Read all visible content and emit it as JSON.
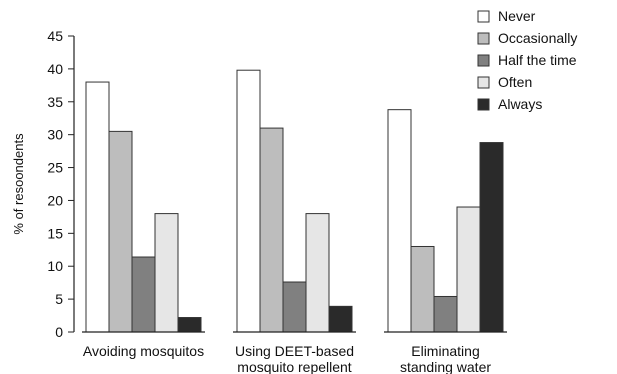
{
  "chart_data": {
    "type": "bar",
    "categories": [
      [
        "Avoiding mosquitos"
      ],
      [
        "Using DEET-based",
        "mosquito repellent"
      ],
      [
        "Eliminating",
        "standing water"
      ]
    ],
    "series": [
      {
        "name": "Never",
        "color": "#ffffff",
        "values": [
          38,
          39.8,
          33.8
        ]
      },
      {
        "name": "Occasionally",
        "color": "#bdbdbd",
        "values": [
          30.5,
          31,
          13
        ]
      },
      {
        "name": "Half the time",
        "color": "#808080",
        "values": [
          11.4,
          7.6,
          5.4
        ]
      },
      {
        "name": "Often",
        "color": "#e6e6e6",
        "values": [
          18,
          18,
          19
        ]
      },
      {
        "name": "Always",
        "color": "#2a2a2a",
        "values": [
          2.2,
          3.9,
          28.8
        ]
      }
    ],
    "xlabel": "",
    "ylabel": "% of resoondents",
    "ylim": [
      0,
      45
    ],
    "yticks": [
      0,
      5,
      10,
      15,
      20,
      25,
      30,
      35,
      40,
      45
    ],
    "grid": false,
    "legend_position": "top-right"
  }
}
